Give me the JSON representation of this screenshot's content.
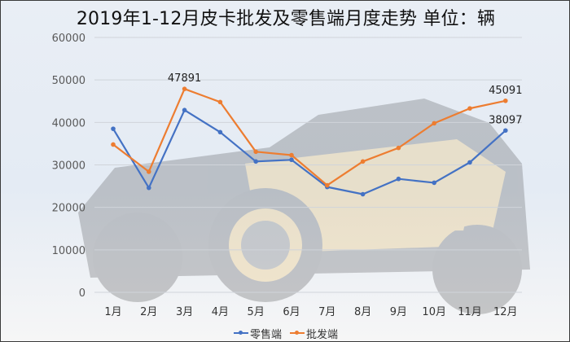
{
  "title": "2019年1-12月皮卡批发及零售端月度走势 单位：辆",
  "colors": {
    "retail": "#4472c4",
    "wholesale": "#ed7d31",
    "grid": "#d0d4da",
    "axis_text": "#595959"
  },
  "legend": [
    {
      "label": "零售端",
      "color": "#4472c4"
    },
    {
      "label": "批发端",
      "color": "#ed7d31"
    }
  ],
  "chart_data": {
    "type": "line",
    "title": "2019年1-12月皮卡批发及零售端月度走势 单位：辆",
    "xlabel": "",
    "ylabel": "",
    "categories": [
      "1月",
      "2月",
      "3月",
      "4月",
      "5月",
      "6月",
      "7月",
      "8月",
      "9月",
      "10月",
      "11月",
      "12月"
    ],
    "series": [
      {
        "name": "零售端",
        "color": "#4472c4",
        "values": [
          38500,
          24600,
          42900,
          37700,
          30800,
          31200,
          24800,
          23100,
          26700,
          25800,
          30600,
          38097
        ]
      },
      {
        "name": "批发端",
        "color": "#ed7d31",
        "values": [
          34800,
          28400,
          47891,
          44800,
          33100,
          32300,
          25200,
          30800,
          34000,
          39800,
          43300,
          45091
        ]
      }
    ],
    "data_labels": [
      {
        "series": "批发端",
        "category": "3月",
        "text": "47891"
      },
      {
        "series": "批发端",
        "category": "12月",
        "text": "45091"
      },
      {
        "series": "零售端",
        "category": "12月",
        "text": "38097"
      }
    ],
    "yticks": [
      0,
      10000,
      20000,
      30000,
      40000,
      50000,
      60000
    ],
    "ylim": [
      0,
      60000
    ],
    "grid": true,
    "legend_position": "bottom"
  }
}
